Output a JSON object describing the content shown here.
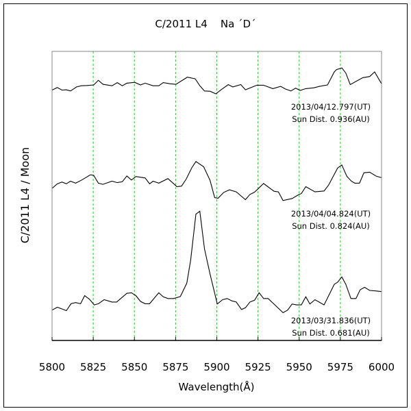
{
  "chart_data": {
    "type": "line",
    "title": "C/2011 L4    Na ´D´",
    "xlabel": "Wavelength(Å)",
    "ylabel": "C/2011 L4 / Moon",
    "xlim": [
      5800,
      6000
    ],
    "ylim": [
      0,
      100
    ],
    "x_ticks": [
      5800,
      5825,
      5850,
      5875,
      5900,
      5925,
      5950,
      5975,
      6000
    ],
    "x_tick_labels": [
      "5800",
      "5825",
      "5850",
      "5875",
      "5900",
      "5925",
      "5950",
      "5975",
      "6000"
    ],
    "gridlines_x": [
      5825,
      5850,
      5875,
      5900,
      5925,
      5950,
      5975
    ],
    "grid_color": "#00dd00",
    "line_color": "#000000",
    "y_units": "relative (offset spectra, no y ticks shown)",
    "series": [
      {
        "name": "2013/04/12.797",
        "annotation": [
          "2013/04/12.797(UT)",
          "Sun Dist. 0.936(AU)"
        ],
        "x": [
          5800,
          5803.2,
          5806,
          5808.7,
          5811.2,
          5814.9,
          5817.7,
          5821.2,
          5825.3,
          5828.1,
          5830.9,
          5836.4,
          5839.6,
          5842.6,
          5845.4,
          5850.2,
          5853.7,
          5856.5,
          5861.3,
          5864.8,
          5867.5,
          5871.7,
          5875.2,
          5882.1,
          5886.9,
          5889.7,
          5892.5,
          5895.9,
          5899.4,
          5902.8,
          5907,
          5909.7,
          5914.6,
          5917.4,
          5924.3,
          5928.4,
          5934,
          5938.8,
          5941.6,
          5945,
          5947.8,
          5950.6,
          5954,
          5958.9,
          5962.3,
          5967.2,
          5971.3,
          5972.7,
          5975.9,
          5978.3,
          5981,
          5988.6,
          5992.8,
          5995.8,
          6000
        ],
        "y": [
          86.6,
          87.5,
          86.6,
          86.7,
          86.3,
          87.7,
          88.1,
          88.2,
          88.4,
          90.0,
          88.6,
          88.1,
          89.2,
          88.1,
          89.0,
          89.3,
          88.4,
          89.0,
          88.1,
          88.1,
          89.2,
          88.8,
          88.6,
          91.1,
          90.5,
          88.1,
          86.3,
          86.2,
          85.3,
          86.8,
          88.5,
          87.7,
          88.5,
          86.7,
          88.3,
          88.3,
          87.1,
          87.9,
          87.0,
          86.3,
          87.3,
          86.5,
          87.1,
          87.4,
          87.9,
          88.4,
          92.9,
          93.7,
          94.3,
          92.5,
          88.5,
          90.9,
          91.3,
          92.9,
          88.8
        ]
      },
      {
        "name": "2013/04/04.824",
        "annotation": [
          "2013/04/04.824(UT)",
          "Sun Dist. 0.824(AU)"
        ],
        "x": [
          5800,
          5803.2,
          5806,
          5808.7,
          5811.2,
          5814.3,
          5817.7,
          5823.3,
          5825.3,
          5828.1,
          5830.9,
          5836.4,
          5839.6,
          5842.6,
          5845.4,
          5848.2,
          5850.9,
          5856.5,
          5859.2,
          5861.3,
          5864.8,
          5870.3,
          5875.8,
          5878.6,
          5881.4,
          5884.8,
          5887.3,
          5892.0,
          5895.9,
          5898.7,
          5900.8,
          5904.2,
          5907.7,
          5911.8,
          5917.4,
          5920.1,
          5922.9,
          5928.4,
          5934.7,
          5937.4,
          5940.2,
          5945.7,
          5949.9,
          5951.3,
          5954.0,
          5959.6,
          5965.1,
          5967.9,
          5973.4,
          5975.9,
          5978.9,
          5981.7,
          5983.8,
          5986.6,
          5989.3,
          5992.8,
          5996.9,
          6000
        ],
        "y": [
          52.6,
          54.2,
          54.8,
          54.2,
          55.1,
          54.4,
          55.4,
          57.3,
          57.1,
          54.4,
          54.0,
          55.1,
          54.6,
          54.9,
          56.9,
          55.5,
          56.7,
          56.2,
          54.2,
          55.1,
          54.4,
          56.0,
          53.2,
          53.4,
          55.8,
          59.7,
          61.9,
          60.1,
          55.4,
          49.4,
          49.2,
          51.2,
          52.1,
          51.4,
          48.7,
          50.5,
          51.3,
          54.3,
          51.6,
          51.4,
          48.4,
          49.1,
          50.5,
          50.8,
          53.2,
          51.4,
          51.7,
          53.8,
          59.7,
          60.7,
          56.8,
          55.1,
          54.4,
          54.4,
          58.0,
          58.2,
          56.8,
          56.3
        ]
      },
      {
        "name": "2013/03/31.836",
        "annotation": [
          "2013/03/31.836(UT)",
          "Sun Dist. 0.681(AU)"
        ],
        "x": [
          5800,
          5803.2,
          5806,
          5808.7,
          5811.5,
          5814.3,
          5817.3,
          5819.8,
          5822.6,
          5825.6,
          5828.1,
          5831.6,
          5836.4,
          5839.2,
          5845.4,
          5848.2,
          5850.9,
          5853.7,
          5856.5,
          5859.2,
          5864.8,
          5867.5,
          5870.3,
          5873.8,
          5877.9,
          5881.8,
          5884.1,
          5887.3,
          5889.7,
          5892.5,
          5895.9,
          5900.3,
          5903.5,
          5906.3,
          5909.1,
          5911.8,
          5915.0,
          5917.4,
          5920.1,
          5922.9,
          5925.7,
          5928.4,
          5931.2,
          5940.2,
          5943.0,
          5945.7,
          5948.5,
          5951.3,
          5954.0,
          5956.5,
          5959.6,
          5965.1,
          5967.9,
          5971.3,
          5973.4,
          5975.9,
          5978.3,
          5981.4,
          5984.5,
          5987.0,
          5989.7,
          5992.8,
          5996.9,
          6000
        ],
        "y": [
          10.5,
          11.5,
          10.9,
          10.3,
          12.7,
          13.1,
          12.7,
          15.5,
          14.3,
          12.3,
          12.7,
          14.1,
          13.3,
          13.3,
          16.3,
          16.5,
          15.5,
          13.5,
          12.7,
          12.7,
          16.5,
          15.1,
          14.5,
          14.5,
          15.2,
          19.8,
          27.7,
          43.7,
          44.7,
          31.7,
          23.0,
          12.6,
          14.1,
          14.5,
          13.7,
          13.3,
          10.7,
          11.3,
          13.3,
          13.9,
          16.5,
          14.5,
          14.5,
          9.6,
          10.5,
          12.6,
          12.3,
          12.3,
          15.1,
          12.6,
          14.1,
          12.3,
          15.5,
          19.4,
          20.2,
          22.0,
          19.4,
          14.5,
          14.5,
          17.5,
          18.4,
          17.3,
          17.1,
          16.9
        ]
      }
    ]
  }
}
